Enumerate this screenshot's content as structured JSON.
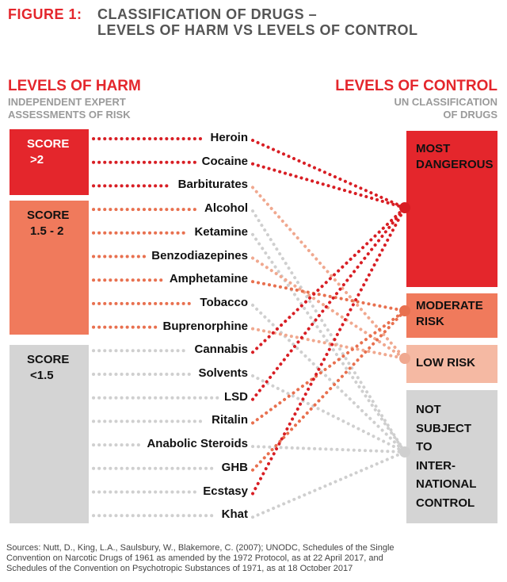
{
  "figure": {
    "label": "FIGURE 1:",
    "title_line1": "CLASSIFICATION OF DRUGS –",
    "title_line2": "LEVELS OF HARM VS LEVELS OF CONTROL"
  },
  "harm": {
    "heading": "LEVELS OF HARM",
    "sub_line1": "INDEPENDENT EXPERT",
    "sub_line2": "ASSESSMENTS OF RISK",
    "boxes": [
      {
        "line1": "SCORE",
        "line2": ">2",
        "color": "#e4262c"
      },
      {
        "line1": "SCORE",
        "line2": "1.5 - 2",
        "color": "#f07a5c"
      },
      {
        "line1": "SCORE",
        "line2": "<1.5",
        "color": "#d4d4d4"
      }
    ]
  },
  "control": {
    "heading": "LEVELS OF CONTROL",
    "sub_line1": "UN CLASSIFICATION",
    "sub_line2": "OF DRUGS",
    "boxes": [
      {
        "lines": [
          "MOST",
          "DANGEROUS"
        ],
        "color": "#e4262c"
      },
      {
        "lines": [
          "MODERATE",
          "RISK"
        ],
        "color": "#f07a5c"
      },
      {
        "lines": [
          "LOW RISK"
        ],
        "color": "#f5b9a3"
      },
      {
        "lines": [
          "NOT",
          "SUBJECT",
          "TO",
          "INTER-",
          "NATIONAL",
          "CONTROL"
        ],
        "color": "#d4d4d4"
      }
    ]
  },
  "drugs": [
    {
      "name": "Heroin",
      "harm": 0,
      "control": 0
    },
    {
      "name": "Cocaine",
      "harm": 0,
      "control": 0
    },
    {
      "name": "Barbiturates",
      "harm": 0,
      "control": 2
    },
    {
      "name": "Alcohol",
      "harm": 1,
      "control": 3
    },
    {
      "name": "Ketamine",
      "harm": 1,
      "control": 3
    },
    {
      "name": "Benzodiazepines",
      "harm": 1,
      "control": 2
    },
    {
      "name": "Amphetamine",
      "harm": 1,
      "control": 1
    },
    {
      "name": "Tobacco",
      "harm": 1,
      "control": 3
    },
    {
      "name": "Buprenorphine",
      "harm": 1,
      "control": 2
    },
    {
      "name": "Cannabis",
      "harm": 2,
      "control": 0
    },
    {
      "name": "Solvents",
      "harm": 2,
      "control": 3
    },
    {
      "name": "LSD",
      "harm": 2,
      "control": 0
    },
    {
      "name": "Ritalin",
      "harm": 2,
      "control": 1
    },
    {
      "name": "Anabolic Steroids",
      "harm": 2,
      "control": 3
    },
    {
      "name": "GHB",
      "harm": 2,
      "control": 1
    },
    {
      "name": "Ecstasy",
      "harm": 2,
      "control": 0
    },
    {
      "name": "Khat",
      "harm": 2,
      "control": 3
    }
  ],
  "sources": {
    "line1": "Sources: Nutt, D., King, L.A., Saulsbury, W., Blakemore, C. (2007); UNODC, Schedules of the Single",
    "line2": "Convention on Narcotic Drugs of 1961 as amended by the 1972 Protocol, as at 22 April 2017, and",
    "line3": "Schedules of the Convention on Psychotropic Substances of 1971, as at 18 October 2017"
  }
}
